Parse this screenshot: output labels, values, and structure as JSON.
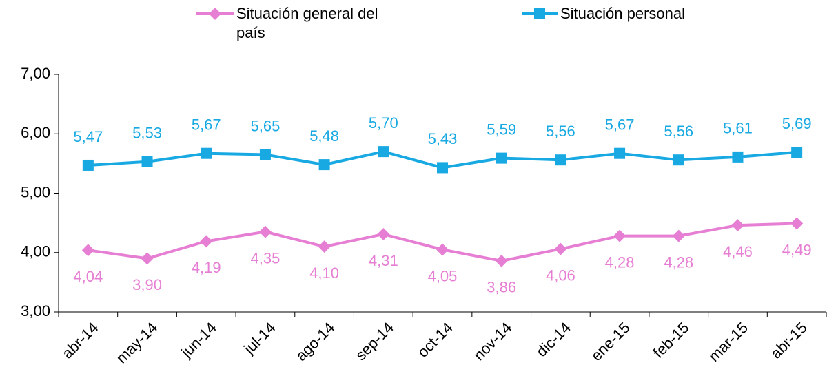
{
  "chart_data": {
    "type": "line",
    "categories": [
      "abr-14",
      "may-14",
      "jun-14",
      "jul-14",
      "ago-14",
      "sep-14",
      "oct-14",
      "nov-14",
      "dic-14",
      "ene-15",
      "feb-15",
      "mar-15",
      "abr-15"
    ],
    "series": [
      {
        "name": "Situación general del país",
        "color": "#e67fd3",
        "marker": "diamond",
        "values": [
          4.04,
          3.9,
          4.19,
          4.35,
          4.1,
          4.31,
          4.05,
          3.86,
          4.06,
          4.28,
          4.28,
          4.46,
          4.49
        ],
        "value_labels": [
          "4,04",
          "3,90",
          "4,19",
          "4,35",
          "4,10",
          "4,31",
          "4,05",
          "3,86",
          "4,06",
          "4,28",
          "4,28",
          "4,46",
          "4,49"
        ]
      },
      {
        "name": "Situación personal",
        "color": "#18a9e2",
        "marker": "square",
        "values": [
          5.47,
          5.53,
          5.67,
          5.65,
          5.48,
          5.7,
          5.43,
          5.59,
          5.56,
          5.67,
          5.56,
          5.61,
          5.69
        ],
        "value_labels": [
          "5,47",
          "5,53",
          "5,67",
          "5,65",
          "5,48",
          "5,70",
          "5,43",
          "5,59",
          "5,56",
          "5,67",
          "5,56",
          "5,61",
          "5,69"
        ]
      }
    ],
    "ylim": [
      3,
      7
    ],
    "yticks": [
      {
        "value": 3,
        "label": "3,00"
      },
      {
        "value": 4,
        "label": "4,00"
      },
      {
        "value": 5,
        "label": "5,00"
      },
      {
        "value": 6,
        "label": "6,00"
      },
      {
        "value": 7,
        "label": "7,00"
      }
    ]
  }
}
